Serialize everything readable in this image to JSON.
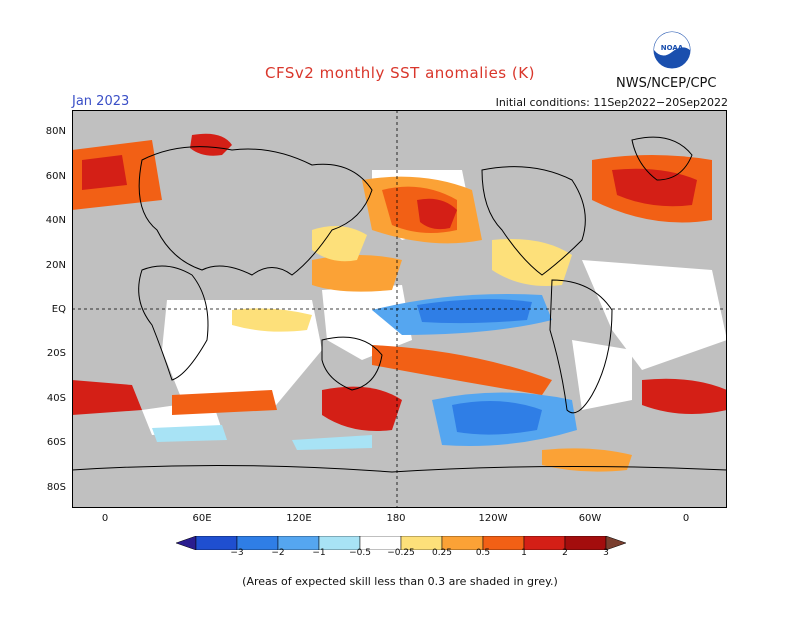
{
  "title": "CFSv2 monthly SST anomalies (K)",
  "agency": "NWS/NCEP/CPC",
  "logo_text": "NOAA",
  "valid_month": "Jan 2023",
  "initial_conditions": "Initial conditions: 11Sep2022−20Sep2022",
  "footnote": "(Areas of expected skill less than 0.3 are shaded in grey.)",
  "lat_labels": [
    "80N",
    "60N",
    "40N",
    "20N",
    "EQ",
    "20S",
    "40S",
    "60S",
    "80S"
  ],
  "lon_labels": [
    "0",
    "60E",
    "120E",
    "180",
    "120W",
    "60W",
    "0"
  ],
  "colorbar": {
    "labels": [
      "−3",
      "−2",
      "−1",
      "−0.5",
      "−0.25",
      "0.25",
      "0.5",
      "1",
      "2",
      "3"
    ],
    "colors": [
      "#2a1d8f",
      "#1f4fd0",
      "#2f7ee6",
      "#55a6f0",
      "#a8e3f5",
      "#ffffff",
      "#fde07a",
      "#fba236",
      "#f26015",
      "#d41f16",
      "#a30d0d",
      "#7a3f2f"
    ]
  },
  "colors": {
    "skill_mask_grey": "#c0c0c0",
    "title_red": "#d9362b",
    "date_blue": "#3a4fc7"
  }
}
